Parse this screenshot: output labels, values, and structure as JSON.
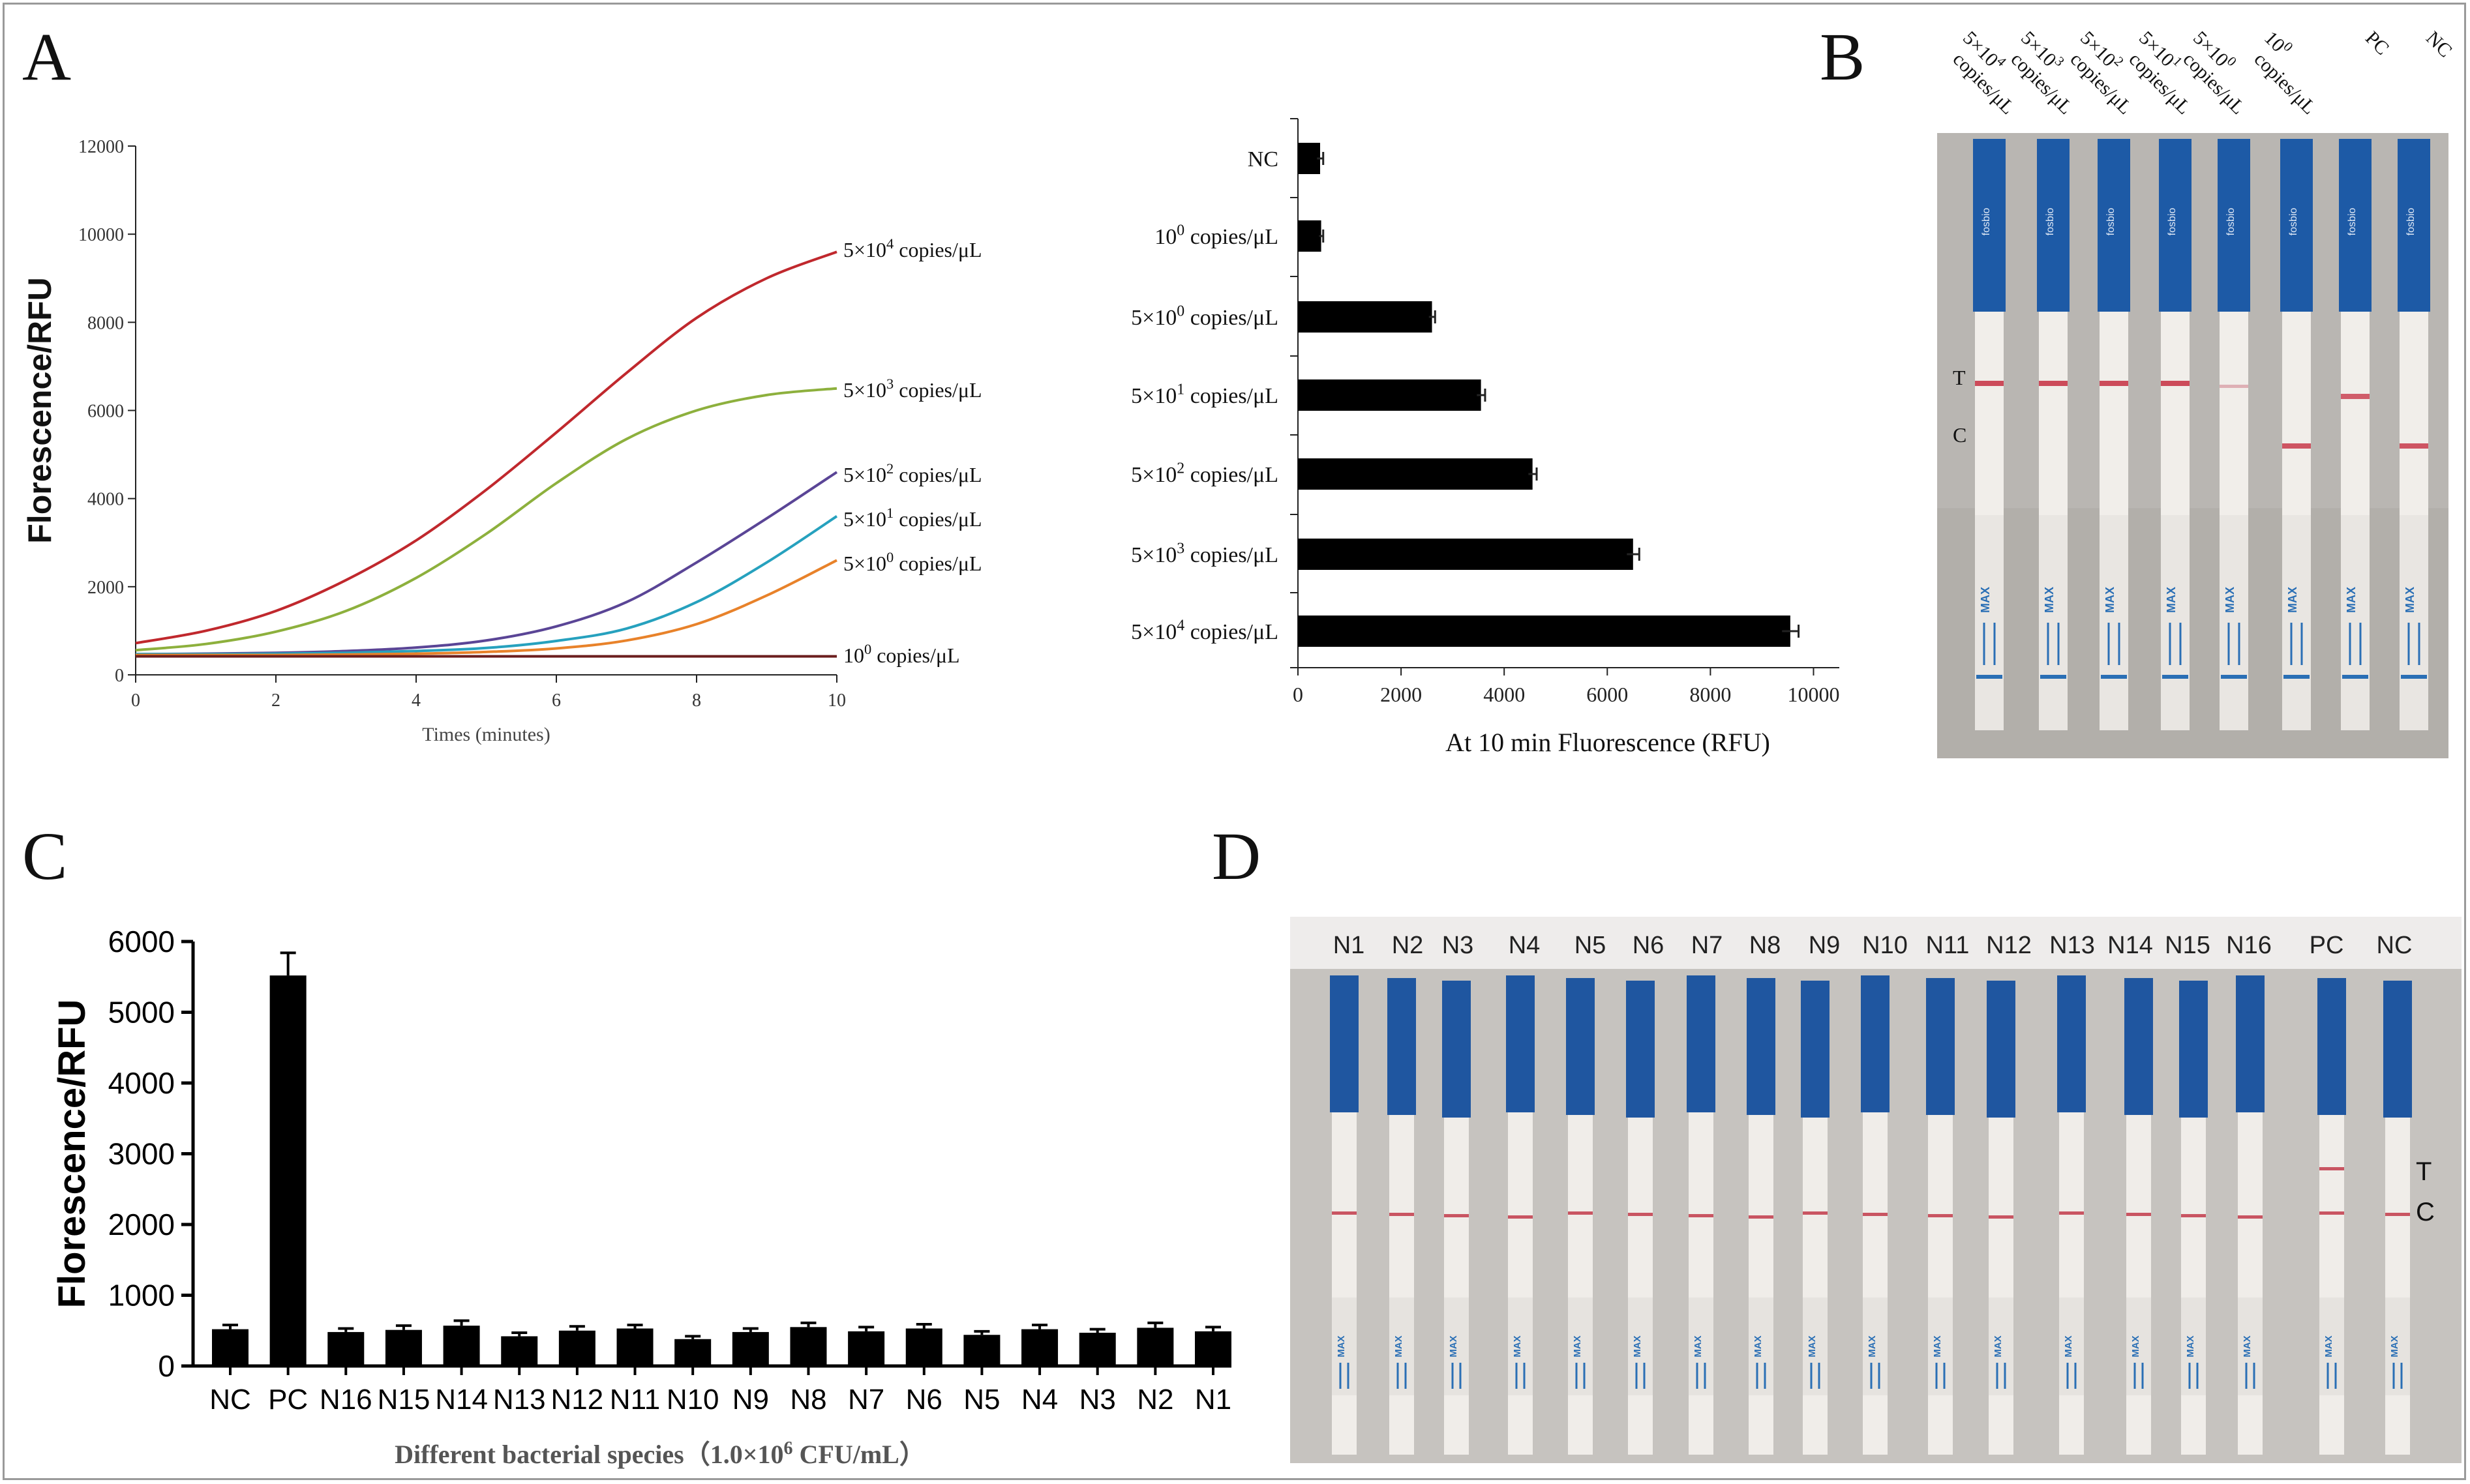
{
  "panels": {
    "a": "A",
    "b": "B",
    "c": "C",
    "d": "D"
  },
  "units": "copies/μL",
  "chart_data": [
    {
      "type": "line",
      "panel": "A (left)",
      "xlabel": "Times (minutes)",
      "ylabel": "Florescence/RFU",
      "xlim": [
        0,
        10
      ],
      "ylim": [
        0,
        12000
      ],
      "xticks": [
        0,
        2,
        4,
        6,
        8,
        10
      ],
      "yticks": [
        0,
        2000,
        4000,
        6000,
        8000,
        10000,
        12000
      ],
      "x": [
        0,
        1,
        2,
        3,
        4,
        5,
        6,
        7,
        8,
        9,
        10
      ],
      "series": [
        {
          "name": "5×10^4",
          "base": "5×10",
          "exp": "4",
          "color": "#c0282d",
          "values": [
            720,
            1000,
            1450,
            2150,
            3050,
            4200,
            5500,
            6850,
            8100,
            9000,
            9600
          ]
        },
        {
          "name": "5×10^3",
          "base": "5×10",
          "exp": "3",
          "color": "#8db03d",
          "values": [
            560,
            700,
            980,
            1450,
            2200,
            3200,
            4350,
            5350,
            6000,
            6350,
            6500
          ]
        },
        {
          "name": "5×10^2",
          "base": "5×10",
          "exp": "2",
          "color": "#5a4596",
          "values": [
            470,
            480,
            500,
            540,
            620,
            780,
            1100,
            1650,
            2550,
            3550,
            4600
          ]
        },
        {
          "name": "5×10^1",
          "base": "5×10",
          "exp": "1",
          "color": "#26a1be",
          "values": [
            470,
            470,
            480,
            500,
            540,
            610,
            770,
            1050,
            1650,
            2550,
            3600
          ]
        },
        {
          "name": "5×10^0",
          "base": "5×10",
          "exp": "0",
          "color": "#e8822a",
          "values": [
            450,
            450,
            450,
            460,
            480,
            520,
            600,
            780,
            1150,
            1800,
            2600
          ]
        },
        {
          "name": "10^0",
          "base": "10",
          "exp": "0",
          "color": "#6b1e1e",
          "values": [
            420,
            420,
            420,
            420,
            420,
            420,
            420,
            420,
            420,
            420,
            420
          ]
        }
      ]
    },
    {
      "type": "bar",
      "orientation": "horizontal",
      "panel": "A (right)",
      "xlabel": "At 10 min Fluorescence (RFU)",
      "xlim": [
        0,
        10500
      ],
      "xticks": [
        0,
        2000,
        4000,
        6000,
        8000,
        10000
      ],
      "categories": [
        {
          "label": "NC",
          "base": "NC",
          "exp": ""
        },
        {
          "label": "10^0",
          "base": "10",
          "exp": "0"
        },
        {
          "label": "5×10^0",
          "base": "5×10",
          "exp": "0"
        },
        {
          "label": "5×10^1",
          "base": "5×10",
          "exp": "1"
        },
        {
          "label": "5×10^2",
          "base": "5×10",
          "exp": "2"
        },
        {
          "label": "5×10^3",
          "base": "5×10",
          "exp": "3"
        },
        {
          "label": "5×10^4",
          "base": "5×10",
          "exp": "4"
        }
      ],
      "values": [
        430,
        450,
        2600,
        3550,
        4550,
        6500,
        9550
      ],
      "errors": [
        60,
        40,
        60,
        80,
        80,
        120,
        160
      ]
    },
    {
      "type": "bar",
      "panel": "C",
      "ylabel": "Florescence/RFU",
      "xlabel_main": "Different bacterial species（1.0×10",
      "xlabel_sup": "6",
      "xlabel_tail": " CFU/mL）",
      "ylim": [
        0,
        6000
      ],
      "yticks": [
        0,
        1000,
        2000,
        3000,
        4000,
        5000,
        6000
      ],
      "categories": [
        "NC",
        "PC",
        "N16",
        "N15",
        "N14",
        "N13",
        "N12",
        "N11",
        "N10",
        "N9",
        "N8",
        "N7",
        "N6",
        "N5",
        "N4",
        "N3",
        "N2",
        "N1"
      ],
      "values": [
        520,
        5520,
        480,
        510,
        570,
        420,
        500,
        530,
        380,
        480,
        550,
        490,
        530,
        440,
        520,
        470,
        540,
        490
      ],
      "errors": [
        60,
        320,
        50,
        60,
        70,
        50,
        60,
        50,
        40,
        50,
        60,
        60,
        60,
        50,
        60,
        50,
        70,
        60
      ]
    }
  ],
  "strips_b": {
    "labels": [
      {
        "base": "5×10",
        "exp": "4",
        "unit": "copies/μL"
      },
      {
        "base": "5×10",
        "exp": "3",
        "unit": "copies/μL"
      },
      {
        "base": "5×10",
        "exp": "2",
        "unit": "copies/μL"
      },
      {
        "base": "5×10",
        "exp": "1",
        "unit": "copies/μL"
      },
      {
        "base": "5×10",
        "exp": "0",
        "unit": "copies/μL"
      },
      {
        "base": "10",
        "exp": "0",
        "unit": "copies/μL"
      },
      {
        "base": "PC",
        "exp": "",
        "unit": ""
      },
      {
        "base": "NC",
        "exp": "",
        "unit": ""
      }
    ],
    "t_label": "T",
    "c_label": "C",
    "brand": "fosbio",
    "max_text": "MAX"
  },
  "strips_d": {
    "labels": [
      "N1",
      "N2",
      "N3",
      "N4",
      "N5",
      "N6",
      "N7",
      "N8",
      "N9",
      "N10",
      "N11",
      "N12",
      "N13",
      "N14",
      "N15",
      "N16",
      "PC",
      "NC"
    ],
    "t_label": "T",
    "c_label": "C"
  }
}
